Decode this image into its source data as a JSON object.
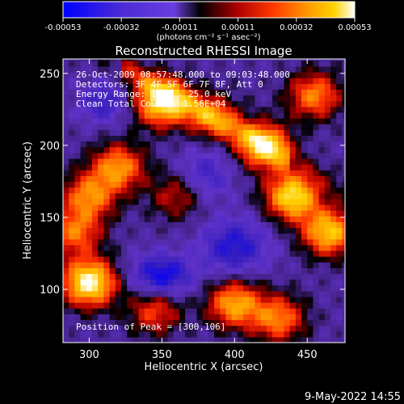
{
  "colorbar": {
    "ticks": [
      "-0.00053",
      "-0.00032",
      "-0.00011",
      "0.00011",
      "0.00032",
      "0.00053"
    ],
    "units": "(photons cm⁻² s⁻¹ asec⁻²)",
    "range": [
      -0.00053,
      0.00053
    ]
  },
  "overlay": {
    "time": "26-Oct-2009 08:57:48.000 to 09:03:48.000",
    "detectors": "Detectors: 3F 4F 5F 6F 7F 8F, Att 0",
    "energy": "Energy Range: 12.0 - 25.0 keV",
    "clean": "Clean     Total Counts: 1.56E+04",
    "peak": "Position of Peak = [300,106]"
  },
  "footer": {
    "date": "9-May-2022 14:55"
  },
  "chart_data": {
    "type": "heatmap",
    "title": "Reconstructed RHESSI Image",
    "xlabel": "Heliocentric X (arcsec)",
    "ylabel": "Heliocentric Y (arcsec)",
    "xlim": [
      282,
      476
    ],
    "ylim": [
      63,
      260
    ],
    "xticks": [
      300,
      350,
      400,
      450
    ],
    "yticks": [
      100,
      150,
      200,
      250
    ],
    "colormap": [
      "#0000ff",
      "#2a1466",
      "#5a2db0",
      "#7c3aff",
      "#000000",
      "#c00000",
      "#ff3300",
      "#ff8a00",
      "#ffd000",
      "#ffffff"
    ],
    "peak": [
      300,
      106
    ],
    "bright_regions": [
      {
        "x": 350,
        "y": 230,
        "level": 0.9
      },
      {
        "x": 320,
        "y": 185,
        "level": 0.65
      },
      {
        "x": 300,
        "y": 165,
        "level": 0.6
      },
      {
        "x": 300,
        "y": 105,
        "level": 1.0
      },
      {
        "x": 290,
        "y": 140,
        "level": 0.55
      },
      {
        "x": 420,
        "y": 200,
        "level": 0.75
      },
      {
        "x": 440,
        "y": 165,
        "level": 0.9
      },
      {
        "x": 465,
        "y": 140,
        "level": 0.8
      },
      {
        "x": 455,
        "y": 235,
        "level": 0.6
      },
      {
        "x": 400,
        "y": 90,
        "level": 0.7
      },
      {
        "x": 430,
        "y": 80,
        "level": 0.6
      },
      {
        "x": 345,
        "y": 85,
        "level": 0.45
      },
      {
        "x": 385,
        "y": 220,
        "level": 0.45
      },
      {
        "x": 360,
        "y": 165,
        "level": 0.35
      }
    ]
  }
}
